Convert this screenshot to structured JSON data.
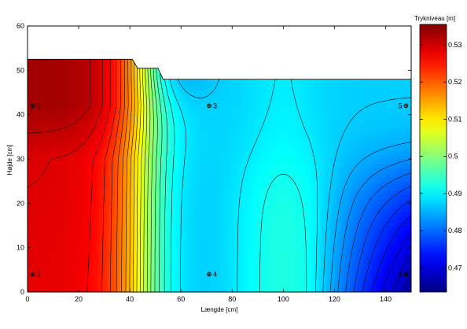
{
  "chart_data": {
    "type": "heatmap",
    "title": "",
    "xlabel": "Længde [cm]",
    "ylabel": "Højde [cm]",
    "xlim": [
      0,
      150
    ],
    "ylim": [
      0,
      60
    ],
    "xticks": [
      0,
      20,
      40,
      60,
      80,
      100,
      120,
      140
    ],
    "yticks": [
      0,
      10,
      20,
      30,
      40,
      50,
      60
    ],
    "colorbar": {
      "label": "Trykniveau [m]",
      "range": [
        0.4635,
        0.5355
      ],
      "ticks": [
        0.47,
        0.48,
        0.49,
        0.5,
        0.51,
        0.52,
        0.53
      ],
      "colormap": "jet"
    },
    "domain_top_profile": [
      [
        0,
        52.5
      ],
      [
        40,
        52.5
      ],
      [
        41,
        52.5
      ],
      [
        43,
        50.5
      ],
      [
        51,
        50.5
      ],
      [
        53,
        48
      ],
      [
        150,
        48
      ]
    ],
    "probes": [
      {
        "label": "1",
        "x": 2,
        "y": 42
      },
      {
        "label": "2",
        "x": 2,
        "y": 4
      },
      {
        "label": "3",
        "x": 71,
        "y": 42
      },
      {
        "label": "4",
        "x": 71,
        "y": 4
      },
      {
        "label": "5",
        "x": 148,
        "y": 42
      },
      {
        "label": "6",
        "x": 148,
        "y": 4
      }
    ],
    "grid": false
  }
}
